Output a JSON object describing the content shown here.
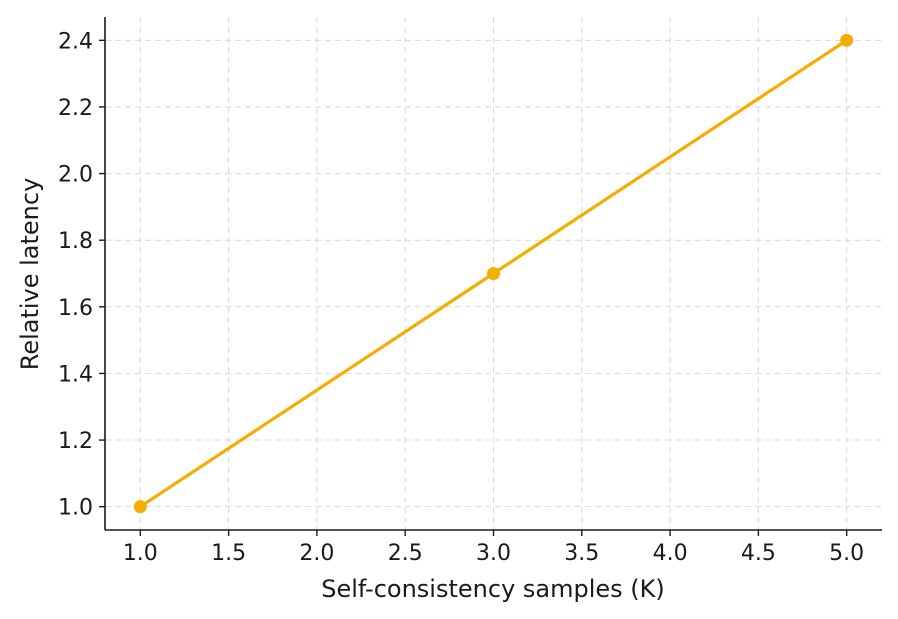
{
  "chart_data": {
    "type": "line",
    "title": "",
    "xlabel": "Self-consistency samples (K)",
    "ylabel": "Relative latency",
    "xlim": [
      0.8,
      5.2
    ],
    "ylim": [
      0.93,
      2.47
    ],
    "xticks": [
      1.0,
      1.5,
      2.0,
      2.5,
      3.0,
      3.5,
      4.0,
      4.5,
      5.0
    ],
    "xtick_labels": [
      "1.0",
      "1.5",
      "2.0",
      "2.5",
      "3.0",
      "3.5",
      "4.0",
      "4.5",
      "5.0"
    ],
    "yticks": [
      1.0,
      1.2,
      1.4,
      1.6,
      1.8,
      2.0,
      2.2,
      2.4
    ],
    "ytick_labels": [
      "1.0",
      "1.2",
      "1.4",
      "1.6",
      "1.8",
      "2.0",
      "2.2",
      "2.4"
    ],
    "grid": true,
    "series": [
      {
        "x": [
          1,
          3,
          5
        ],
        "y": [
          1.0,
          1.7,
          2.4
        ],
        "color": "#F5AD00",
        "marker": "circle"
      }
    ]
  }
}
